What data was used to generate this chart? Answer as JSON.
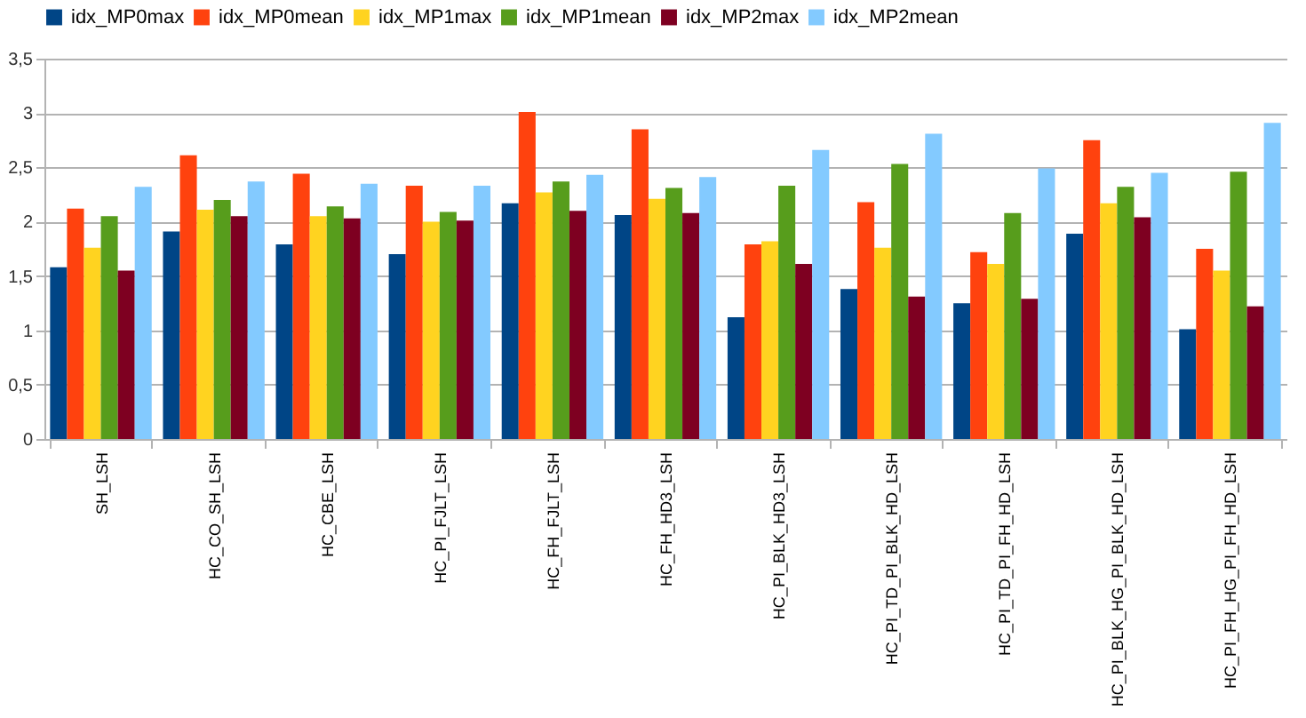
{
  "chart_data": {
    "type": "bar",
    "categories": [
      "SH_LSH",
      "HC_CO_SH_LSH",
      "HC_CBE_LSH",
      "HC_PI_FJLT_LSH",
      "HC_FH_FJLT_LSH",
      "HC_FH_HD3_LSH",
      "HC_PI_BLK_HD3_LSH",
      "HC_PI_TD_PI_BLK_HD_LSH",
      "HC_PI_TD_PI_FH_HD_LSH",
      "HC_PI_BLK_HG_PI_BLK_HD_LSH",
      "HC_PI_FH_HG_PI_FH_HD_LSH"
    ],
    "series": [
      {
        "name": "idx_MP0max",
        "color": "#004586",
        "values": [
          1.58,
          1.91,
          1.79,
          1.7,
          2.17,
          2.06,
          1.12,
          1.38,
          1.25,
          1.89,
          1.01
        ]
      },
      {
        "name": "idx_MP0mean",
        "color": "#ff420e",
        "values": [
          2.12,
          2.61,
          2.44,
          2.33,
          3.01,
          2.85,
          1.79,
          2.18,
          1.72,
          2.75,
          1.75
        ]
      },
      {
        "name": "idx_MP1max",
        "color": "#ffd320",
        "values": [
          1.76,
          2.11,
          2.05,
          2.0,
          2.27,
          2.21,
          1.82,
          1.76,
          1.61,
          2.17,
          1.55
        ]
      },
      {
        "name": "idx_MP1mean",
        "color": "#579d1c",
        "values": [
          2.05,
          2.2,
          2.14,
          2.09,
          2.37,
          2.31,
          2.33,
          2.53,
          2.08,
          2.32,
          2.46
        ]
      },
      {
        "name": "idx_MP2max",
        "color": "#7e0021",
        "values": [
          1.55,
          2.05,
          2.03,
          2.01,
          2.1,
          2.08,
          1.61,
          1.31,
          1.29,
          2.04,
          1.22
        ]
      },
      {
        "name": "idx_MP2mean",
        "color": "#83caff",
        "values": [
          2.32,
          2.37,
          2.35,
          2.33,
          2.43,
          2.41,
          2.66,
          2.81,
          2.49,
          2.45,
          2.91
        ]
      }
    ],
    "ylim": [
      0,
      3.5
    ],
    "yticks": [
      0,
      {
        "value": 0.5,
        "label": "0,5"
      },
      1,
      {
        "value": 1.5,
        "label": "1,5"
      },
      2,
      {
        "value": 2.5,
        "label": "2,5"
      },
      3,
      {
        "value": 3.5,
        "label": "3,5"
      }
    ],
    "grid": "y",
    "legend": "top"
  }
}
